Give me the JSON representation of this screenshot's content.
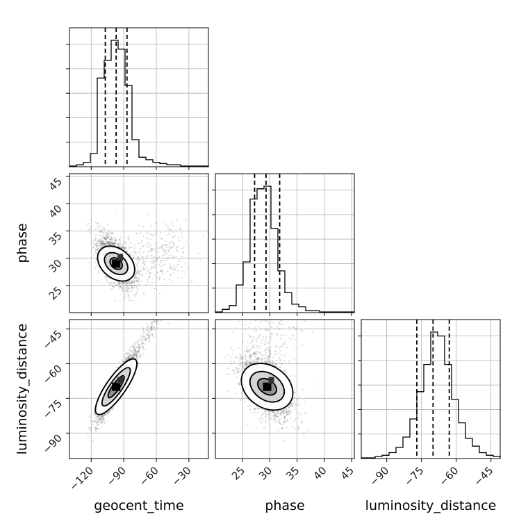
{
  "chart_data": {
    "type": "corner",
    "parameters": [
      "geocent_time",
      "phase",
      "luminosity_distance"
    ],
    "axis_labels": {
      "x": [
        "geocent_time",
        "phase",
        "luminosity_distance"
      ],
      "y": [
        "",
        "phase",
        "luminosity_distance"
      ]
    },
    "ranges": {
      "geocent_time": [
        -140,
        -12
      ],
      "phase": [
        20,
        45.5
      ],
      "luminosity_distance": [
        -101,
        -41
      ]
    },
    "ticks": {
      "geocent_time": [
        -120,
        -90,
        -60,
        -30
      ],
      "phase": [
        25,
        30,
        35,
        40,
        45
      ],
      "luminosity_distance": [
        -90,
        -75,
        -60,
        -45
      ]
    },
    "tick_labels": {
      "geocent_time": [
        "−120",
        "−90",
        "−60",
        "−30"
      ],
      "phase": [
        "25",
        "30",
        "35",
        "40",
        "45"
      ],
      "luminosity_distance": [
        "−90",
        "−75",
        "−60",
        "−45"
      ]
    },
    "quantiles": {
      "geocent_time": [
        -107,
        -97,
        -87
      ],
      "phase": [
        27.2,
        29.3,
        31.8
      ],
      "luminosity_distance": [
        -77,
        -70,
        -63
      ]
    },
    "histograms": {
      "geocent_time": {
        "edges": [
          -140,
          -133.6,
          -127.2,
          -120.8,
          -114.4,
          -108,
          -101.6,
          -95.2,
          -88.8,
          -82.4,
          -76,
          -69.6,
          -63.2,
          -56.8,
          -50.4,
          -44,
          -37.6,
          -31.2,
          -24.8,
          -18.4,
          -12
        ],
        "counts": [
          0,
          1,
          3,
          10,
          70,
          84,
          100,
          93,
          64,
          21,
          7,
          5,
          3,
          2,
          1,
          1,
          0,
          0,
          0,
          0
        ]
      },
      "phase": {
        "edges": [
          20,
          21.275,
          22.55,
          23.825,
          25.1,
          26.375,
          27.65,
          28.925,
          30.2,
          31.475,
          32.75,
          34.025,
          35.3,
          36.575,
          37.85,
          39.125,
          40.4,
          41.675,
          42.95,
          44.225,
          45.5
        ],
        "counts": [
          0,
          2,
          5,
          21,
          39,
          88,
          96,
          98,
          65,
          32,
          15,
          6,
          4,
          1,
          1,
          0,
          0,
          0,
          0,
          0
        ]
      },
      "luminosity_distance": {
        "edges": [
          -101,
          -98,
          -95,
          -92,
          -89,
          -86,
          -83,
          -80,
          -77,
          -74,
          -71,
          -68,
          -65,
          -62,
          -59,
          -56,
          -53,
          -50,
          -47,
          -44,
          -41
        ],
        "counts": [
          0,
          0,
          1,
          2,
          4,
          8,
          16,
          30,
          51,
          72,
          97,
          94,
          72,
          45,
          27,
          15,
          9,
          4,
          2,
          1
        ]
      }
    },
    "grid": true
  }
}
